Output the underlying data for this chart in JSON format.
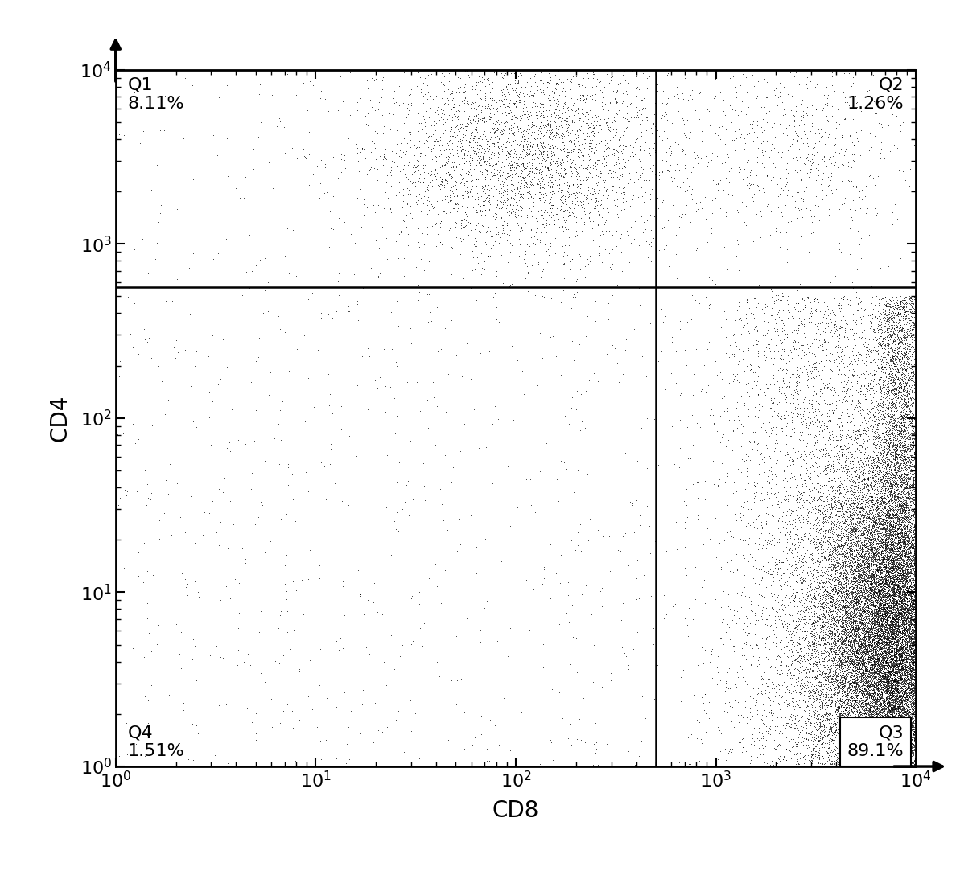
{
  "xlabel": "CD8",
  "ylabel": "CD4",
  "xlim_log": [
    0,
    4
  ],
  "ylim_log": [
    0,
    4
  ],
  "gate_x_log": 2.7,
  "gate_y_log": 2.75,
  "background_color": "#ffffff",
  "dot_color": "#000000",
  "seed": 42,
  "Q1_label": "Q1",
  "Q1_pct": "8.11%",
  "Q2_label": "Q2",
  "Q2_pct": "1.26%",
  "Q3_label": "Q3",
  "Q3_pct": "89.1%",
  "Q4_label": "Q4",
  "Q4_pct": "1.51%",
  "fontsize_quad": 16,
  "fontsize_axis": 20,
  "fontsize_tick": 16
}
